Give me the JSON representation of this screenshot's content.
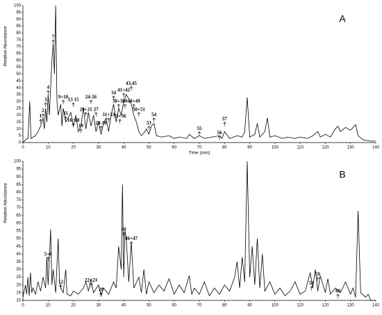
{
  "chart_data": [
    {
      "type": "line",
      "panel_label": "A",
      "xlabel": "Time (min)",
      "ylabel": "Relative Abundance",
      "color": "#000000",
      "xlim": [
        0,
        140
      ],
      "xticks": [
        0,
        10,
        20,
        30,
        40,
        50,
        60,
        70,
        80,
        90,
        100,
        110,
        120,
        130,
        140
      ],
      "ylim": [
        0,
        100
      ],
      "yticks": [
        0,
        5,
        10,
        15,
        20,
        25,
        30,
        35,
        40,
        45,
        50,
        55,
        60,
        65,
        70,
        75,
        80,
        85,
        90,
        95,
        100
      ],
      "x": [
        0,
        1,
        2,
        2.7,
        3.2,
        4,
        5,
        6,
        7,
        8,
        8.5,
        9,
        9.5,
        10,
        10.5,
        11,
        11.5,
        12,
        12.5,
        13,
        13.5,
        14,
        15,
        15.5,
        16,
        17,
        18,
        19,
        20,
        21,
        22,
        23,
        24,
        25,
        26,
        27,
        28,
        29,
        30,
        31,
        32,
        33,
        34,
        35,
        36,
        37,
        38,
        39,
        40,
        41,
        42,
        43,
        44,
        45,
        46,
        47,
        48,
        49,
        50,
        51,
        52,
        53,
        55,
        58,
        60,
        62,
        65,
        66,
        68,
        70,
        72,
        75,
        78,
        79,
        80,
        82,
        85,
        87,
        88,
        89,
        90,
        92,
        93,
        94,
        96,
        97,
        98,
        100,
        103,
        105,
        108,
        110,
        113,
        115,
        117,
        118,
        120,
        122,
        124,
        125,
        126,
        128,
        130,
        132,
        133,
        135,
        138,
        140
      ],
      "values": [
        0,
        2,
        3,
        30,
        3,
        4,
        5,
        8,
        12,
        18,
        10,
        25,
        15,
        35,
        20,
        40,
        60,
        72,
        50,
        100,
        30,
        20,
        28,
        12,
        25,
        15,
        18,
        22,
        12,
        20,
        8,
        12,
        25,
        10,
        22,
        12,
        20,
        8,
        15,
        6,
        14,
        18,
        8,
        20,
        28,
        15,
        25,
        20,
        30,
        35,
        32,
        28,
        20,
        15,
        8,
        5,
        7,
        10,
        6,
        12,
        14,
        5,
        4,
        5,
        3,
        4,
        3,
        6,
        3,
        5,
        3,
        4,
        5,
        3,
        8,
        3,
        5,
        4,
        8,
        33,
        4,
        6,
        14,
        4,
        8,
        18,
        4,
        5,
        3,
        4,
        3,
        4,
        3,
        5,
        8,
        4,
        6,
        4,
        10,
        12,
        8,
        11,
        9,
        13,
        5,
        2,
        1,
        1
      ],
      "annotations": [
        {
          "text": "1",
          "x": 7,
          "y": 17
        },
        {
          "text": "2",
          "x": 8,
          "y": 21
        },
        {
          "text": "3",
          "x": 9,
          "y": 29
        },
        {
          "text": "4",
          "x": 10,
          "y": 38
        },
        {
          "text": "7",
          "x": 12,
          "y": 75
        },
        {
          "text": "9+10",
          "x": 16,
          "y": 31
        },
        {
          "text": "11",
          "x": 17,
          "y": 19
        },
        {
          "text": "13 15",
          "x": 20,
          "y": 29
        },
        {
          "text": "16~18",
          "x": 20,
          "y": 14
        },
        {
          "text": "19",
          "x": 23,
          "y": 10
        },
        {
          "text": "20+21",
          "x": 25,
          "y": 22
        },
        {
          "text": "24-26",
          "x": 27,
          "y": 31
        },
        {
          "text": "27",
          "x": 29,
          "y": 22
        },
        {
          "text": "29-30",
          "x": 31,
          "y": 12
        },
        {
          "text": "31+33",
          "x": 34,
          "y": 18
        },
        {
          "text": "34",
          "x": 36,
          "y": 34
        },
        {
          "text": "38+39",
          "x": 38,
          "y": 28
        },
        {
          "text": "35+36",
          "x": 38.5,
          "y": 17
        },
        {
          "text": "40",
          "x": 40.5,
          "y": 28
        },
        {
          "text": "41+42",
          "x": 40,
          "y": 36
        },
        {
          "text": "43,45",
          "x": 43,
          "y": 41
        },
        {
          "text": "48+49",
          "x": 44,
          "y": 28
        },
        {
          "text": "50+51",
          "x": 46,
          "y": 22
        },
        {
          "text": "53",
          "x": 50,
          "y": 12
        },
        {
          "text": "54",
          "x": 52,
          "y": 18
        },
        {
          "text": "55",
          "x": 70,
          "y": 8
        },
        {
          "text": "56",
          "x": 78,
          "y": 5
        },
        {
          "text": "57",
          "x": 80,
          "y": 15
        }
      ]
    },
    {
      "type": "line",
      "panel_label": "B",
      "ylabel": "Relative Abundance",
      "color": "#000000",
      "xlim": [
        0,
        140
      ],
      "xticks": [
        0,
        10,
        20,
        30,
        40,
        50,
        60,
        70,
        80,
        90,
        100,
        110,
        120,
        130,
        140
      ],
      "ylim": [
        10,
        100
      ],
      "yticks": [
        10,
        15,
        20,
        25,
        30,
        35,
        40,
        45,
        50,
        55,
        60,
        65,
        70,
        75,
        80,
        85,
        90,
        95,
        100
      ],
      "x": [
        0,
        1,
        1.5,
        2,
        2.5,
        3,
        3.5,
        4,
        5,
        6,
        7,
        8,
        9,
        9.5,
        10,
        11,
        11.5,
        12,
        13,
        14,
        14.5,
        15,
        16,
        17,
        17.5,
        19,
        20,
        22,
        24,
        25,
        26,
        27,
        28,
        30,
        31,
        32,
        34,
        36,
        37,
        38,
        39,
        39.5,
        40,
        40.5,
        41,
        42,
        43,
        44,
        46,
        47,
        48,
        49,
        50,
        52,
        54,
        56,
        58,
        60,
        62,
        64,
        66,
        67,
        68,
        70,
        72,
        74,
        76,
        78,
        80,
        82,
        84,
        85,
        86,
        87,
        88,
        89,
        90,
        91,
        92,
        93,
        94,
        95,
        96,
        98,
        100,
        102,
        104,
        106,
        108,
        110,
        112,
        114,
        115,
        116,
        117,
        118,
        120,
        121,
        122,
        124,
        126,
        128,
        130,
        131,
        132,
        133,
        134,
        136,
        137,
        138,
        140
      ],
      "values": [
        12,
        20,
        14,
        25,
        13,
        28,
        15,
        18,
        14,
        22,
        16,
        25,
        18,
        38,
        20,
        56,
        20,
        30,
        15,
        50,
        22,
        18,
        15,
        30,
        14,
        13,
        16,
        14,
        18,
        22,
        16,
        24,
        15,
        20,
        13,
        18,
        14,
        22,
        18,
        45,
        30,
        85,
        25,
        55,
        50,
        22,
        48,
        18,
        25,
        15,
        30,
        14,
        22,
        15,
        20,
        16,
        24,
        14,
        20,
        15,
        26,
        14,
        18,
        14,
        22,
        13,
        18,
        14,
        20,
        16,
        25,
        35,
        18,
        38,
        22,
        100,
        25,
        45,
        20,
        50,
        18,
        40,
        16,
        22,
        14,
        18,
        13,
        16,
        22,
        14,
        16,
        28,
        18,
        30,
        16,
        26,
        15,
        24,
        14,
        18,
        15,
        22,
        14,
        18,
        12,
        68,
        15,
        12,
        14,
        10,
        10
      ],
      "annotations": [
        {
          "text": "5+6",
          "x": 10,
          "y": 38
        },
        {
          "text": "12",
          "x": 15,
          "y": 20
        },
        {
          "text": "22+23",
          "x": 27,
          "y": 21
        },
        {
          "text": "28",
          "x": 31,
          "y": 15
        },
        {
          "text": "40",
          "x": 40,
          "y": 54
        },
        {
          "text": "46+47",
          "x": 43,
          "y": 48
        },
        {
          "text": "58",
          "x": 114.5,
          "y": 19
        },
        {
          "text": "59",
          "x": 117,
          "y": 25
        },
        {
          "text": "60",
          "x": 125,
          "y": 14
        }
      ]
    }
  ]
}
